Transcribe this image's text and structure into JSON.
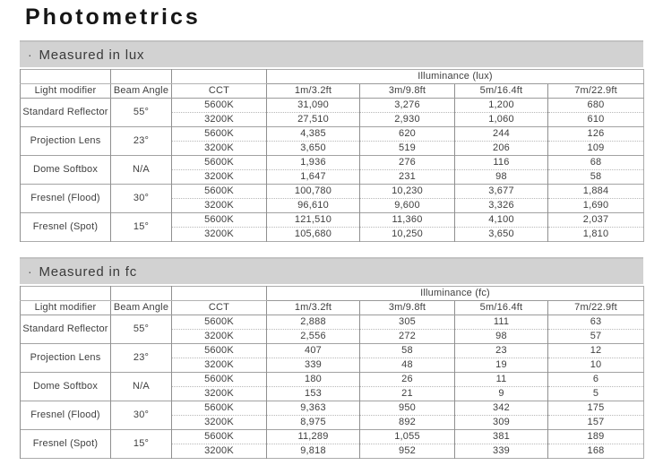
{
  "page_title": "Photometrics",
  "sections": [
    {
      "bullet": "·",
      "title": "Measured in lux",
      "illuminance_header": "Illuminance (lux)",
      "columns": [
        "Light modifier",
        "Beam Angle",
        "CCT",
        "1m/3.2ft",
        "3m/9.8ft",
        "5m/16.4ft",
        "7m/22.9ft"
      ],
      "groups": [
        {
          "modifier": "Standard Reflector",
          "beam_angle": "55°",
          "rows": [
            {
              "cct": "5600K",
              "values": [
                "31,090",
                "3,276",
                "1,200",
                "680"
              ]
            },
            {
              "cct": "3200K",
              "values": [
                "27,510",
                "2,930",
                "1,060",
                "610"
              ]
            }
          ]
        },
        {
          "modifier": "Projection Lens",
          "beam_angle": "23°",
          "rows": [
            {
              "cct": "5600K",
              "values": [
                "4,385",
                "620",
                "244",
                "126"
              ]
            },
            {
              "cct": "3200K",
              "values": [
                "3,650",
                "519",
                "206",
                "109"
              ]
            }
          ]
        },
        {
          "modifier": "Dome Softbox",
          "beam_angle": "N/A",
          "rows": [
            {
              "cct": "5600K",
              "values": [
                "1,936",
                "276",
                "116",
                "68"
              ]
            },
            {
              "cct": "3200K",
              "values": [
                "1,647",
                "231",
                "98",
                "58"
              ]
            }
          ]
        },
        {
          "modifier": "Fresnel (Flood)",
          "beam_angle": "30°",
          "rows": [
            {
              "cct": "5600K",
              "values": [
                "100,780",
                "10,230",
                "3,677",
                "1,884"
              ]
            },
            {
              "cct": "3200K",
              "values": [
                "96,610",
                "9,600",
                "3,326",
                "1,690"
              ]
            }
          ]
        },
        {
          "modifier": "Fresnel (Spot)",
          "beam_angle": "15°",
          "rows": [
            {
              "cct": "5600K",
              "values": [
                "121,510",
                "11,360",
                "4,100",
                "2,037"
              ]
            },
            {
              "cct": "3200K",
              "values": [
                "105,680",
                "10,250",
                "3,650",
                "1,810"
              ]
            }
          ]
        }
      ]
    },
    {
      "bullet": "·",
      "title": "Measured in fc",
      "illuminance_header": "Illuminance (fc)",
      "columns": [
        "Light modifier",
        "Beam Angle",
        "CCT",
        "1m/3.2ft",
        "3m/9.8ft",
        "5m/16.4ft",
        "7m/22.9ft"
      ],
      "groups": [
        {
          "modifier": "Standard Reflector",
          "beam_angle": "55°",
          "rows": [
            {
              "cct": "5600K",
              "values": [
                "2,888",
                "305",
                "111",
                "63"
              ]
            },
            {
              "cct": "3200K",
              "values": [
                "2,556",
                "272",
                "98",
                "57"
              ]
            }
          ]
        },
        {
          "modifier": "Projection Lens",
          "beam_angle": "23°",
          "rows": [
            {
              "cct": "5600K",
              "values": [
                "407",
                "58",
                "23",
                "12"
              ]
            },
            {
              "cct": "3200K",
              "values": [
                "339",
                "48",
                "19",
                "10"
              ]
            }
          ]
        },
        {
          "modifier": "Dome Softbox",
          "beam_angle": "N/A",
          "rows": [
            {
              "cct": "5600K",
              "values": [
                "180",
                "26",
                "11",
                "6"
              ]
            },
            {
              "cct": "3200K",
              "values": [
                "153",
                "21",
                "9",
                "5"
              ]
            }
          ]
        },
        {
          "modifier": "Fresnel (Flood)",
          "beam_angle": "30°",
          "rows": [
            {
              "cct": "5600K",
              "values": [
                "9,363",
                "950",
                "342",
                "175"
              ]
            },
            {
              "cct": "3200K",
              "values": [
                "8,975",
                "892",
                "309",
                "157"
              ]
            }
          ]
        },
        {
          "modifier": "Fresnel (Spot)",
          "beam_angle": "15°",
          "rows": [
            {
              "cct": "5600K",
              "values": [
                "11,289",
                "1,055",
                "381",
                "189"
              ]
            },
            {
              "cct": "3200K",
              "values": [
                "9,818",
                "952",
                "339",
                "168"
              ]
            }
          ]
        }
      ]
    }
  ]
}
